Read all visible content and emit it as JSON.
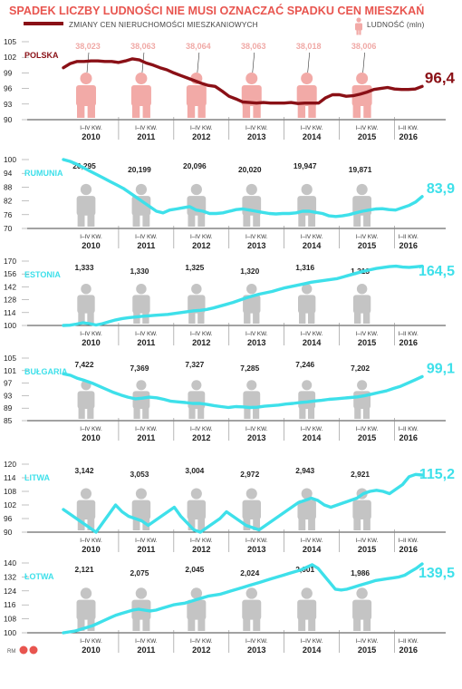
{
  "title": "SPADEK LICZBY LUDNOŚCI NIE MUSI OZNACZAĆ SPADKU CEN MIESZKAŃ",
  "legend": {
    "line_label": "ZMIANY CEN NIERUCHOMOŚCI MIESZKANIOWYCH",
    "pop_label": "LUDNOŚĆ (mln)",
    "line_icon": "dark-red-line",
    "pop_icon": "person-icon"
  },
  "credit": "RM",
  "colors": {
    "title": "#e8554f",
    "poland_line": "#8a1016",
    "poland_person": "#f2aaa7",
    "other_line": "#3ee0ea",
    "other_person": "#c4c4c4"
  },
  "x_axis": {
    "quarter_label": "I–IV KW.",
    "last_label": "I–II KW.",
    "years": [
      "2010",
      "2011",
      "2012",
      "2013",
      "2014",
      "2015",
      "2016"
    ]
  },
  "chart_data": [
    {
      "type": "line",
      "country": "POLSKA",
      "ylim": [
        90,
        105
      ],
      "yticks": [
        105,
        102,
        99,
        96,
        93,
        90
      ],
      "final_value_label": "96,4",
      "population": [
        "38,023",
        "38,063",
        "38,064",
        "38,063",
        "38,018",
        "38,006"
      ],
      "values": [
        100.0,
        100.8,
        101.2,
        101.2,
        101.3,
        101.3,
        101.2,
        101.2,
        101.0,
        101.3,
        101.7,
        101.5,
        100.9,
        100.5,
        100.0,
        99.6,
        99.0,
        98.5,
        98.0,
        97.5,
        97.0,
        96.6,
        96.4,
        95.5,
        94.5,
        94.0,
        93.4,
        93.3,
        93.2,
        93.3,
        93.2,
        93.2,
        93.2,
        93.3,
        93.1,
        93.2,
        93.2,
        93.2,
        94.2,
        94.8,
        94.8,
        94.5,
        94.6,
        94.9,
        95.3,
        95.8,
        96.0,
        96.2,
        95.9,
        95.8,
        95.8,
        95.9,
        96.4
      ]
    },
    {
      "type": "line",
      "country": "RUMUNIA",
      "ylim": [
        70,
        100
      ],
      "yticks": [
        100,
        94,
        88,
        82,
        76,
        70
      ],
      "final_value_label": "83,9",
      "population": [
        "20,295",
        "20,199",
        "20,096",
        "20,020",
        "19,947",
        "19,871"
      ],
      "values": [
        100,
        99.2,
        98,
        96.5,
        95,
        93.5,
        92,
        90.5,
        89,
        87.5,
        85.5,
        83.5,
        81.5,
        79.5,
        77.5,
        76.8,
        78,
        78.5,
        79,
        79.5,
        78,
        77.5,
        76.5,
        76.5,
        76.8,
        77.5,
        78.2,
        78.5,
        78,
        77.5,
        77,
        76.5,
        76.3,
        76.5,
        76.5,
        76.8,
        77.5,
        77.5,
        77,
        76.5,
        75.5,
        75.2,
        75.5,
        76,
        76.8,
        77.5,
        78,
        78.5,
        78.6,
        78.2,
        78,
        79,
        80,
        81.5,
        83.9
      ]
    },
    {
      "type": "line",
      "country": "ESTONIA",
      "ylim": [
        100,
        170
      ],
      "yticks": [
        170,
        156,
        142,
        128,
        114,
        100
      ],
      "final_value_label": "164,5",
      "population": [
        "1,333",
        "1,330",
        "1,325",
        "1,320",
        "1,316",
        "1,313"
      ],
      "values": [
        100,
        100.3,
        101.5,
        103,
        102,
        100.5,
        102,
        104,
        106,
        107.5,
        108.5,
        109.2,
        110,
        110.5,
        111,
        111.5,
        112,
        113,
        114,
        115,
        116,
        116.5,
        117.5,
        119,
        121,
        123,
        125,
        127.5,
        130,
        132,
        134,
        135.5,
        137,
        139,
        141,
        142.5,
        144,
        145.5,
        147,
        148,
        149,
        150,
        151,
        153,
        155,
        157,
        159,
        160.5,
        162,
        163,
        164,
        164.5,
        163.5,
        163.2,
        163.8,
        164.5
      ]
    },
    {
      "type": "line",
      "country": "BUŁGARIA",
      "ylim": [
        85,
        105
      ],
      "yticks": [
        105,
        101,
        97,
        93,
        89,
        85
      ],
      "final_value_label": "99,1",
      "population": [
        "7,422",
        "7,369",
        "7,327",
        "7,285",
        "7,246",
        "7,202"
      ],
      "values": [
        100,
        99.5,
        98.5,
        97.8,
        97,
        96,
        95,
        94,
        93.2,
        92.5,
        92,
        92.2,
        92.5,
        92.3,
        91.8,
        91.2,
        91,
        90.8,
        90.5,
        90.5,
        90.2,
        89.8,
        89.5,
        89.2,
        89.5,
        89.4,
        89.2,
        89.3,
        89.6,
        89.8,
        90,
        90.3,
        90.5,
        90.8,
        91,
        91.3,
        91.5,
        91.8,
        92,
        92.2,
        92.4,
        92.6,
        93,
        93.5,
        94,
        94.5,
        95.3,
        96,
        97,
        98,
        99.1
      ]
    },
    {
      "type": "line",
      "country": "LITWA",
      "ylim": [
        90,
        120
      ],
      "yticks": [
        120,
        114,
        108,
        102,
        96,
        90
      ],
      "final_value_label": "115,2",
      "population": [
        "3,142",
        "3,053",
        "3,004",
        "2,972",
        "2,943",
        "2,921"
      ],
      "values": [
        100,
        98,
        96,
        94,
        92,
        90,
        94,
        98,
        102,
        99,
        97,
        96,
        95,
        93,
        95,
        97,
        99,
        101,
        97,
        94,
        91,
        90,
        92,
        94,
        96,
        99,
        97,
        95,
        93,
        92,
        91,
        93,
        95,
        97,
        99,
        101,
        103,
        104,
        105,
        104,
        102,
        101,
        102,
        103,
        104,
        105,
        107,
        108,
        108.5,
        108,
        107,
        109,
        111,
        114.5,
        115.5,
        115.2
      ]
    },
    {
      "type": "line",
      "country": "ŁOTWA",
      "ylim": [
        100,
        140
      ],
      "yticks": [
        140,
        132,
        124,
        116,
        108,
        100
      ],
      "final_value_label": "139,5",
      "population": [
        "2,121",
        "2,075",
        "2,045",
        "2,024",
        "2,001",
        "1,986"
      ],
      "values": [
        100,
        100.5,
        101,
        102,
        103,
        104,
        105.5,
        107,
        108.5,
        110,
        111,
        112,
        113,
        113.5,
        113,
        112.5,
        113,
        114,
        115,
        116,
        116.5,
        117,
        118,
        119,
        120,
        121,
        121.5,
        122,
        123,
        124,
        125,
        126,
        127,
        128,
        129,
        130,
        131,
        132,
        133,
        134,
        135,
        136,
        137.5,
        139,
        137,
        133,
        129,
        125,
        124.5,
        125,
        126,
        127,
        128,
        129,
        130,
        130.5,
        131,
        131.5,
        132,
        133,
        135,
        137,
        139.5
      ]
    }
  ]
}
